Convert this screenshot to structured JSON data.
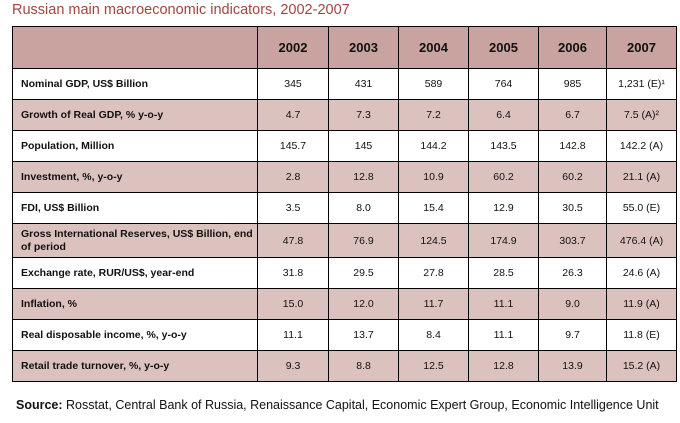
{
  "title": "Russian main macroeconomic indicators, 2002-2007",
  "years": [
    "2002",
    "2003",
    "2004",
    "2005",
    "2006",
    "2007"
  ],
  "rows": [
    {
      "label": "Nominal GDP, US$ Billion",
      "values": [
        "345",
        "431",
        "589",
        "764",
        "985",
        "1,231 (E)¹"
      ]
    },
    {
      "label": "Growth of Real GDP, % y-o-y",
      "values": [
        "4.7",
        "7.3",
        "7.2",
        "6.4",
        "6.7",
        "7.5 (A)²"
      ]
    },
    {
      "label": "Population, Million",
      "values": [
        "145.7",
        "145",
        "144.2",
        "143.5",
        "142.8",
        "142.2 (A)"
      ]
    },
    {
      "label": "Investment, %, y-o-y",
      "values": [
        "2.8",
        "12.8",
        "10.9",
        "60.2",
        "60.2",
        "21.1 (A)"
      ]
    },
    {
      "label": "FDI, US$ Billion",
      "values": [
        "3.5",
        "8.0",
        "15.4",
        "12.9",
        "30.5",
        "55.0 (E)"
      ]
    },
    {
      "label": "Gross International Reserves, US$ Billion, end of period",
      "values": [
        "47.8",
        "76.9",
        "124.5",
        "174.9",
        "303.7",
        "476.4 (A)"
      ]
    },
    {
      "label": "Exchange rate, RUR/US$, year-end",
      "values": [
        "31.8",
        "29.5",
        "27.8",
        "28.5",
        "26.3",
        "24.6 (A)"
      ]
    },
    {
      "label": "Inflation, %",
      "values": [
        "15.0",
        "12.0",
        "11.7",
        "11.1",
        "9.0",
        "11.9 (A)"
      ]
    },
    {
      "label": "Real disposable income, %, y-o-y",
      "values": [
        "11.1",
        "13.7",
        "8.4",
        "11.1",
        "9.7",
        "11.8 (E)"
      ]
    },
    {
      "label": "Retail trade turnover, %, y-o-y",
      "values": [
        "9.3",
        "8.8",
        "12.5",
        "12.8",
        "13.9",
        "15.2 (A)"
      ]
    }
  ],
  "source": {
    "label": "Source:",
    "text": " Rosstat, Central Bank of Russia, Renaissance Capital, Economic Expert Group, Economic Intelligence Unit"
  },
  "colors": {
    "title": "#a0463e",
    "header_bg": "#c8a39f",
    "stripe_bg": "#dcc2bf",
    "border": "#000000"
  }
}
